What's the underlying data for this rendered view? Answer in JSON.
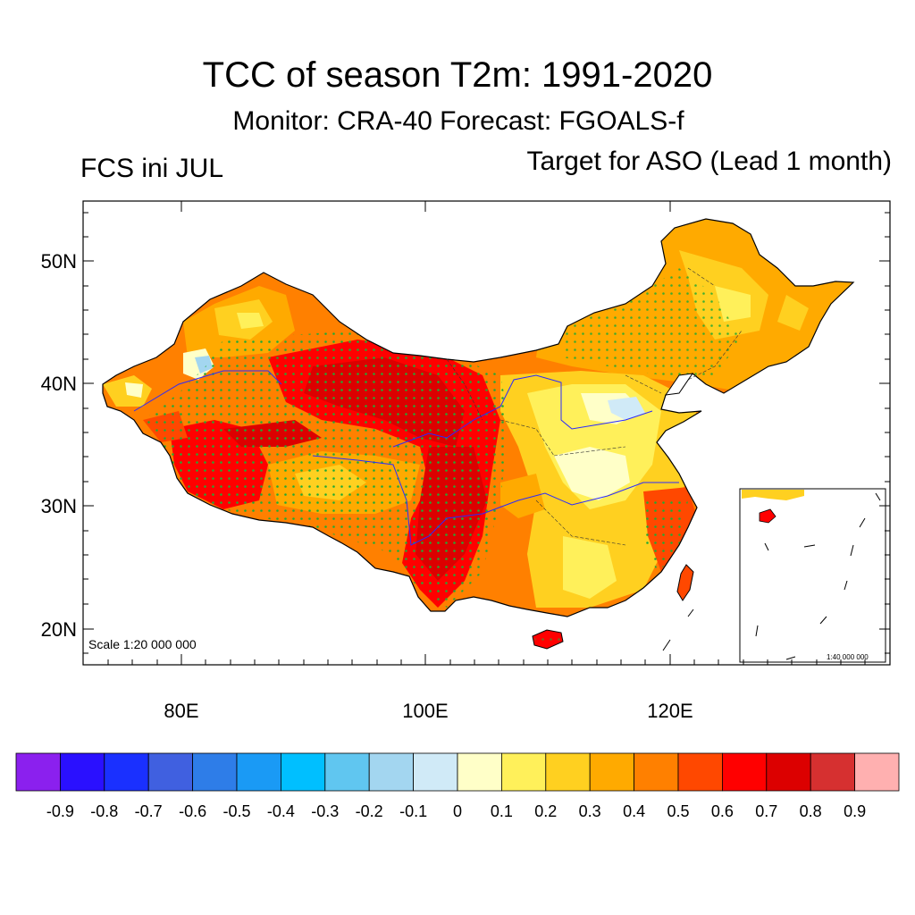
{
  "title": "TCC of season T2m: 1991-2020",
  "subtitle": "Monitor: CRA-40   Forecast: FGOALS-f",
  "left_label": "FCS ini JUL",
  "right_label": "Target for ASO (Lead 1 month)",
  "map": {
    "y_ticks": [
      "50N",
      "40N",
      "30N",
      "20N"
    ],
    "x_ticks": [
      "80E",
      "100E",
      "120E"
    ],
    "scale_main": "Scale 1:20 000 000",
    "scale_inset": "1:40 000 000",
    "lat_range": [
      17,
      55
    ],
    "lon_range": [
      72,
      138
    ]
  },
  "colorbar": {
    "colors": [
      "#8b20ee",
      "#2a10ff",
      "#1a30ff",
      "#4060e0",
      "#2e7de8",
      "#1a9af5",
      "#00bfff",
      "#60c6f0",
      "#a3d6f0",
      "#d0eaf7",
      "#ffffc8",
      "#fff05a",
      "#ffd020",
      "#ffaa00",
      "#ff8000",
      "#ff4800",
      "#ff0000",
      "#dc0000",
      "#d63030",
      "#ffb0b0"
    ],
    "labels": [
      "-0.9",
      "-0.8",
      "-0.7",
      "-0.6",
      "-0.5",
      "-0.4",
      "-0.3",
      "-0.2",
      "-0.1",
      "0",
      "0.1",
      "0.2",
      "0.3",
      "0.4",
      "0.5",
      "0.6",
      "0.7",
      "0.8",
      "0.9"
    ]
  }
}
